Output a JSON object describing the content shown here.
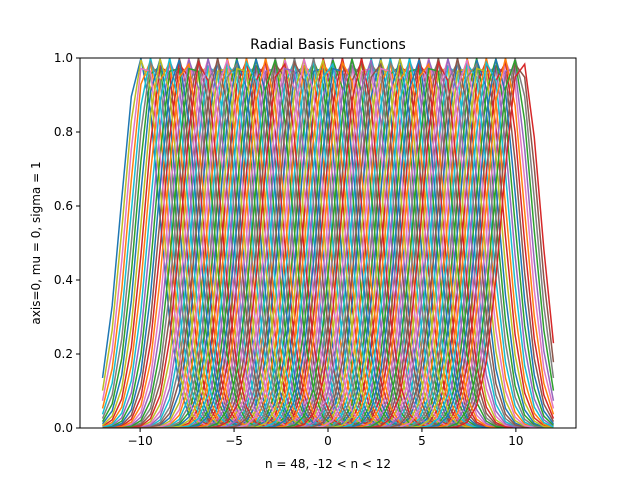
{
  "chart_data": {
    "type": "line",
    "title": "Radial Basis Functions",
    "xlabel": "n = 48, -12 < n < 12",
    "ylabel": "axis=0, mu = 0, sigma = 1",
    "xlim": [
      -13.2,
      13.2
    ],
    "ylim": [
      0,
      1
    ],
    "x_ticks": [
      -10,
      -5,
      0,
      5,
      10
    ],
    "x_tick_labels": [
      "−10",
      "−5",
      "0",
      "5",
      "10"
    ],
    "y_ticks": [
      0.0,
      0.2,
      0.4,
      0.6,
      0.8,
      1.0
    ],
    "y_tick_labels": [
      "0.0",
      "0.2",
      "0.4",
      "0.6",
      "0.8",
      "1.0"
    ],
    "sample_points": 48,
    "x_range": [
      -12,
      12
    ],
    "num_center_curves": 48,
    "center_range": [
      -10,
      10
    ],
    "sigma": 1,
    "mu": 0,
    "legend": "none",
    "grid": false,
    "colors": [
      "#1f77b4",
      "#ff7f0e",
      "#2ca02c",
      "#d62728",
      "#9467bd",
      "#8c564b",
      "#e377c2",
      "#7f7f7f",
      "#bcbd22",
      "#17becf"
    ]
  }
}
